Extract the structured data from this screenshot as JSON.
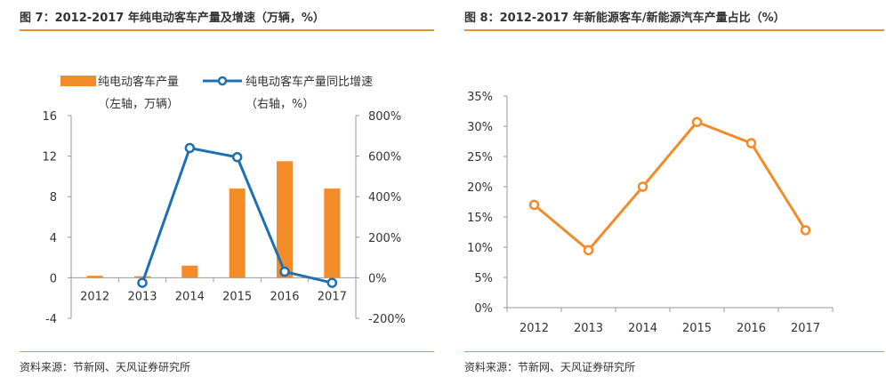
{
  "colors": {
    "orange": "#F28C28",
    "blue": "#1F6FB2",
    "axis": "#999999",
    "accent_rule": "#E8902F"
  },
  "left": {
    "title": "图 7：2012-2017 年纯电动客车产量及增速（万辆，%）",
    "source": "资料来源：节新网、天风证券研究所",
    "legend": [
      {
        "label": "纯电动客车产量",
        "sublabel": "（左轴，万辆）"
      },
      {
        "label": "纯电动客车产量同比增速",
        "sublabel": "（右轴，%）"
      }
    ]
  },
  "right": {
    "title": "图 8：2012-2017 年新能源客车/新能源汽车产量占比（%）",
    "source": "资料来源：节新网、天风证券研究所"
  },
  "chart_data": [
    {
      "type": "bar",
      "categories": [
        "2012",
        "2013",
        "2014",
        "2015",
        "2016",
        "2017"
      ],
      "series": [
        {
          "name": "纯电动客车产量（左轴，万辆）",
          "type": "bar",
          "axis": "left",
          "values": [
            0.2,
            0.15,
            1.2,
            8.8,
            11.5,
            8.8
          ]
        },
        {
          "name": "纯电动客车产量同比增速（右轴，%）",
          "type": "line",
          "axis": "right",
          "values": [
            null,
            -25,
            640,
            595,
            30,
            -25
          ]
        }
      ],
      "y_left": {
        "ticks": [
          "16",
          "12",
          "8",
          "4",
          "0",
          "-4"
        ],
        "ylim": [
          -4,
          16
        ]
      },
      "y_right": {
        "ticks": [
          "800%",
          "600%",
          "400%",
          "200%",
          "0%",
          "-200%"
        ],
        "ylim": [
          -200,
          800
        ]
      },
      "grid": false,
      "legend_position": "top"
    },
    {
      "type": "line",
      "categories": [
        "2012",
        "2013",
        "2014",
        "2015",
        "2016",
        "2017"
      ],
      "series": [
        {
          "values": [
            17,
            9.5,
            20,
            30.7,
            27.2,
            12.8
          ]
        }
      ],
      "y": {
        "ticks": [
          "35%",
          "30%",
          "25%",
          "20%",
          "15%",
          "10%",
          "5%",
          "0%"
        ],
        "ylim": [
          0,
          35
        ]
      },
      "grid": false
    }
  ]
}
